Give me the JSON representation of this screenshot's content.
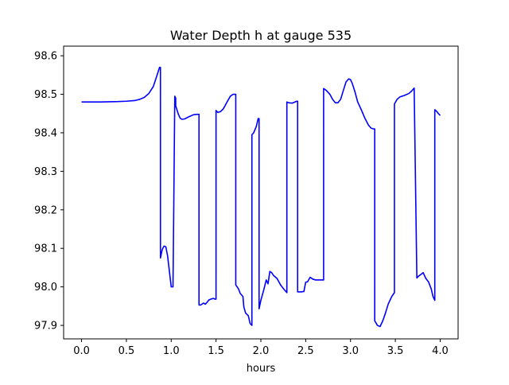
{
  "chart_data": {
    "type": "line",
    "title": "Water Depth h at gauge 535",
    "xlabel": "hours",
    "ylabel": "",
    "xlim": [
      -0.2,
      4.2
    ],
    "ylim": [
      97.865,
      98.625
    ],
    "xticks": [
      "0.0",
      "0.5",
      "1.0",
      "1.5",
      "2.0",
      "2.5",
      "3.0",
      "3.5",
      "4.0"
    ],
    "yticks": [
      "97.9",
      "98.0",
      "98.1",
      "98.2",
      "98.3",
      "98.4",
      "98.5",
      "98.6"
    ],
    "grid": false,
    "line_color": "#0000ff",
    "series": [
      {
        "name": "",
        "x": [
          0.0,
          0.2,
          0.4,
          0.5,
          0.6,
          0.65,
          0.7,
          0.75,
          0.8,
          0.84,
          0.87,
          0.88,
          0.88,
          0.9,
          0.92,
          0.94,
          0.96,
          0.98,
          1.0,
          1.02,
          1.04,
          1.05,
          1.05,
          1.08,
          1.1,
          1.12,
          1.15,
          1.2,
          1.25,
          1.29,
          1.3,
          1.31,
          1.31,
          1.33,
          1.36,
          1.38,
          1.4,
          1.42,
          1.44,
          1.47,
          1.49,
          1.5,
          1.5,
          1.52,
          1.55,
          1.58,
          1.6,
          1.63,
          1.66,
          1.69,
          1.72,
          1.72,
          1.75,
          1.77,
          1.8,
          1.81,
          1.83,
          1.86,
          1.88,
          1.9,
          1.9,
          1.92,
          1.95,
          1.97,
          1.98,
          1.98,
          2.0,
          2.03,
          2.06,
          2.08,
          2.1,
          2.12,
          2.14,
          2.18,
          2.22,
          2.26,
          2.29,
          2.29,
          2.31,
          2.35,
          2.38,
          2.4,
          2.41,
          2.41,
          2.45,
          2.48,
          2.5,
          2.52,
          2.55,
          2.58,
          2.61,
          2.66,
          2.7,
          2.7,
          2.73,
          2.77,
          2.8,
          2.83,
          2.86,
          2.89,
          2.92,
          2.95,
          2.98,
          3.0,
          3.02,
          3.05,
          3.08,
          3.12,
          3.16,
          3.2,
          3.23,
          3.26,
          3.27,
          3.27,
          3.3,
          3.33,
          3.36,
          3.39,
          3.42,
          3.46,
          3.49,
          3.49,
          3.52,
          3.55,
          3.6,
          3.65,
          3.68,
          3.71,
          3.71,
          3.74,
          3.76,
          3.79,
          3.81,
          3.84,
          3.87,
          3.9,
          3.92,
          3.94,
          3.94,
          3.96,
          3.98,
          4.0
        ],
        "y": [
          98.48,
          98.48,
          98.481,
          98.482,
          98.484,
          98.487,
          98.492,
          98.502,
          98.52,
          98.548,
          98.57,
          98.57,
          98.075,
          98.097,
          98.106,
          98.104,
          98.08,
          98.04,
          98.0,
          98.0,
          98.495,
          98.49,
          98.47,
          98.448,
          98.438,
          98.435,
          98.436,
          98.442,
          98.447,
          98.448,
          98.448,
          98.448,
          97.953,
          97.953,
          97.958,
          97.955,
          97.96,
          97.966,
          97.968,
          97.97,
          97.968,
          97.968,
          98.458,
          98.453,
          98.455,
          98.462,
          98.47,
          98.483,
          98.495,
          98.5,
          98.5,
          98.005,
          97.995,
          97.983,
          97.975,
          97.948,
          97.932,
          97.925,
          97.905,
          97.9,
          98.395,
          98.4,
          98.417,
          98.437,
          98.437,
          97.943,
          97.965,
          97.99,
          98.018,
          98.008,
          98.04,
          98.037,
          98.03,
          98.022,
          98.005,
          97.993,
          97.985,
          98.48,
          98.478,
          98.477,
          98.48,
          98.482,
          98.482,
          97.987,
          97.987,
          97.988,
          98.012,
          98.013,
          98.025,
          98.02,
          98.018,
          98.018,
          98.018,
          98.515,
          98.51,
          98.5,
          98.487,
          98.478,
          98.478,
          98.487,
          98.51,
          98.532,
          98.54,
          98.538,
          98.528,
          98.506,
          98.48,
          98.46,
          98.438,
          98.42,
          98.412,
          98.41,
          98.41,
          97.912,
          97.9,
          97.897,
          97.912,
          97.932,
          97.955,
          97.975,
          97.985,
          98.475,
          98.487,
          98.493,
          98.497,
          98.502,
          98.508,
          98.516,
          98.516,
          98.023,
          98.028,
          98.033,
          98.037,
          98.022,
          98.013,
          97.995,
          97.975,
          97.965,
          98.46,
          98.456,
          98.45,
          98.445
        ]
      }
    ]
  }
}
